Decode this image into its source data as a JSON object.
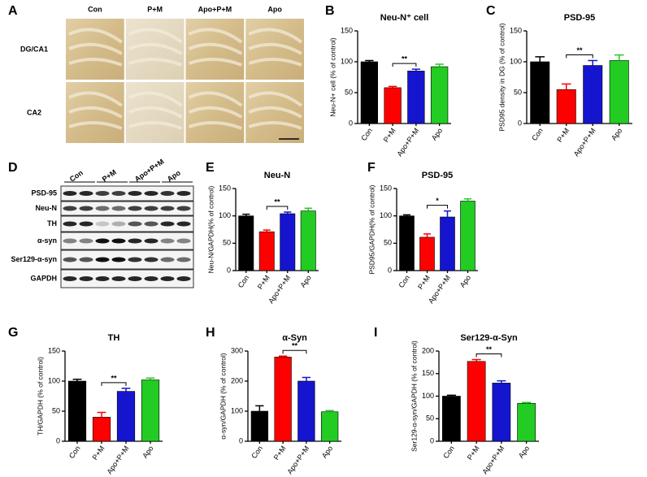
{
  "panel_a": {
    "label": "A",
    "columns": [
      "Con",
      "P+M",
      "Apo+P+M",
      "Apo"
    ],
    "rows": [
      "DG/CA1",
      "CA2"
    ]
  },
  "panel_d": {
    "label": "D",
    "columns": [
      "Con",
      "P+M",
      "Apo+P+M",
      "Apo"
    ],
    "rows": [
      "PSD-95",
      "Neu-N",
      "TH",
      "α-syn",
      "Ser129-α-syn",
      "GAPDH"
    ]
  },
  "chart_data": [
    {
      "type": "bar",
      "panel": "B",
      "title": "Neu-N⁺ cell",
      "y_label": "Neu-N+ cell (% of control)",
      "categories": [
        "Con",
        "P+M",
        "Apo+P+M",
        "Apo"
      ],
      "values": [
        100,
        58,
        85,
        92
      ],
      "errors": [
        2,
        2,
        3,
        4
      ],
      "colors": [
        "#000000",
        "#ff0000",
        "#1515d0",
        "#22cc22"
      ],
      "ylim": [
        0,
        150
      ],
      "yticks": [
        0,
        50,
        100,
        150
      ],
      "annotation": "**"
    },
    {
      "type": "bar",
      "panel": "C",
      "title": "PSD-95",
      "y_label": "PSD95 density in DG (% of control)",
      "categories": [
        "Con",
        "P+M",
        "Apo+P+M",
        "Apo"
      ],
      "values": [
        100,
        55,
        94,
        102
      ],
      "errors": [
        8,
        9,
        8,
        9
      ],
      "colors": [
        "#000000",
        "#ff0000",
        "#1515d0",
        "#22cc22"
      ],
      "ylim": [
        0,
        150
      ],
      "yticks": [
        0,
        50,
        100,
        150
      ],
      "annotation": "**"
    },
    {
      "type": "bar",
      "panel": "E",
      "title": "Neu-N",
      "y_label": "Neu-N/GAPDH(% of control)",
      "categories": [
        "Con",
        "P+M",
        "Apo+P+M",
        "Apo"
      ],
      "values": [
        100,
        71,
        104,
        109
      ],
      "errors": [
        3,
        3,
        3,
        5
      ],
      "colors": [
        "#000000",
        "#ff0000",
        "#1515d0",
        "#22cc22"
      ],
      "ylim": [
        0,
        150
      ],
      "yticks": [
        0,
        50,
        100,
        150
      ],
      "annotation": "**"
    },
    {
      "type": "bar",
      "panel": "F",
      "title": "PSD-95",
      "y_label": "PSD95/GAPDH(% of control)",
      "categories": [
        "Con",
        "P+M",
        "Apo+P+M",
        "Apo"
      ],
      "values": [
        100,
        61,
        98,
        127
      ],
      "errors": [
        2,
        6,
        11,
        4
      ],
      "colors": [
        "#000000",
        "#ff0000",
        "#1515d0",
        "#22cc22"
      ],
      "ylim": [
        0,
        150
      ],
      "yticks": [
        0,
        50,
        100,
        150
      ],
      "annotation": "*"
    },
    {
      "type": "bar",
      "panel": "G",
      "title": "TH",
      "y_label": "TH/GAPDH (% of control)",
      "categories": [
        "Con",
        "P+M",
        "Apo+P+M",
        "Apo"
      ],
      "values": [
        100,
        40,
        83,
        102
      ],
      "errors": [
        3,
        8,
        5,
        3
      ],
      "colors": [
        "#000000",
        "#ff0000",
        "#1515d0",
        "#22cc22"
      ],
      "ylim": [
        0,
        150
      ],
      "yticks": [
        0,
        50,
        100,
        150
      ],
      "annotation": "**"
    },
    {
      "type": "bar",
      "panel": "H",
      "title": "α-Syn",
      "y_label": "α-syn/GAPDH (% of control)",
      "categories": [
        "Con",
        "P+M",
        "Apo+P+M",
        "Apo"
      ],
      "values": [
        100,
        280,
        200,
        98
      ],
      "errors": [
        18,
        3,
        12,
        4
      ],
      "colors": [
        "#000000",
        "#ff0000",
        "#1515d0",
        "#22cc22"
      ],
      "ylim": [
        0,
        300
      ],
      "yticks": [
        0,
        100,
        200,
        300
      ],
      "annotation": "**"
    },
    {
      "type": "bar",
      "panel": "I",
      "title": "Ser129-α-Syn",
      "y_label": "Ser129-α-syn/GAPDH (% of control)",
      "categories": [
        "Con",
        "P+M",
        "Apo+P+M",
        "Apo"
      ],
      "values": [
        100,
        177,
        129,
        84
      ],
      "errors": [
        2,
        4,
        5,
        2
      ],
      "colors": [
        "#000000",
        "#ff0000",
        "#1515d0",
        "#22cc22"
      ],
      "ylim": [
        0,
        200
      ],
      "yticks": [
        0,
        50,
        100,
        150,
        200
      ],
      "annotation": "**"
    }
  ]
}
